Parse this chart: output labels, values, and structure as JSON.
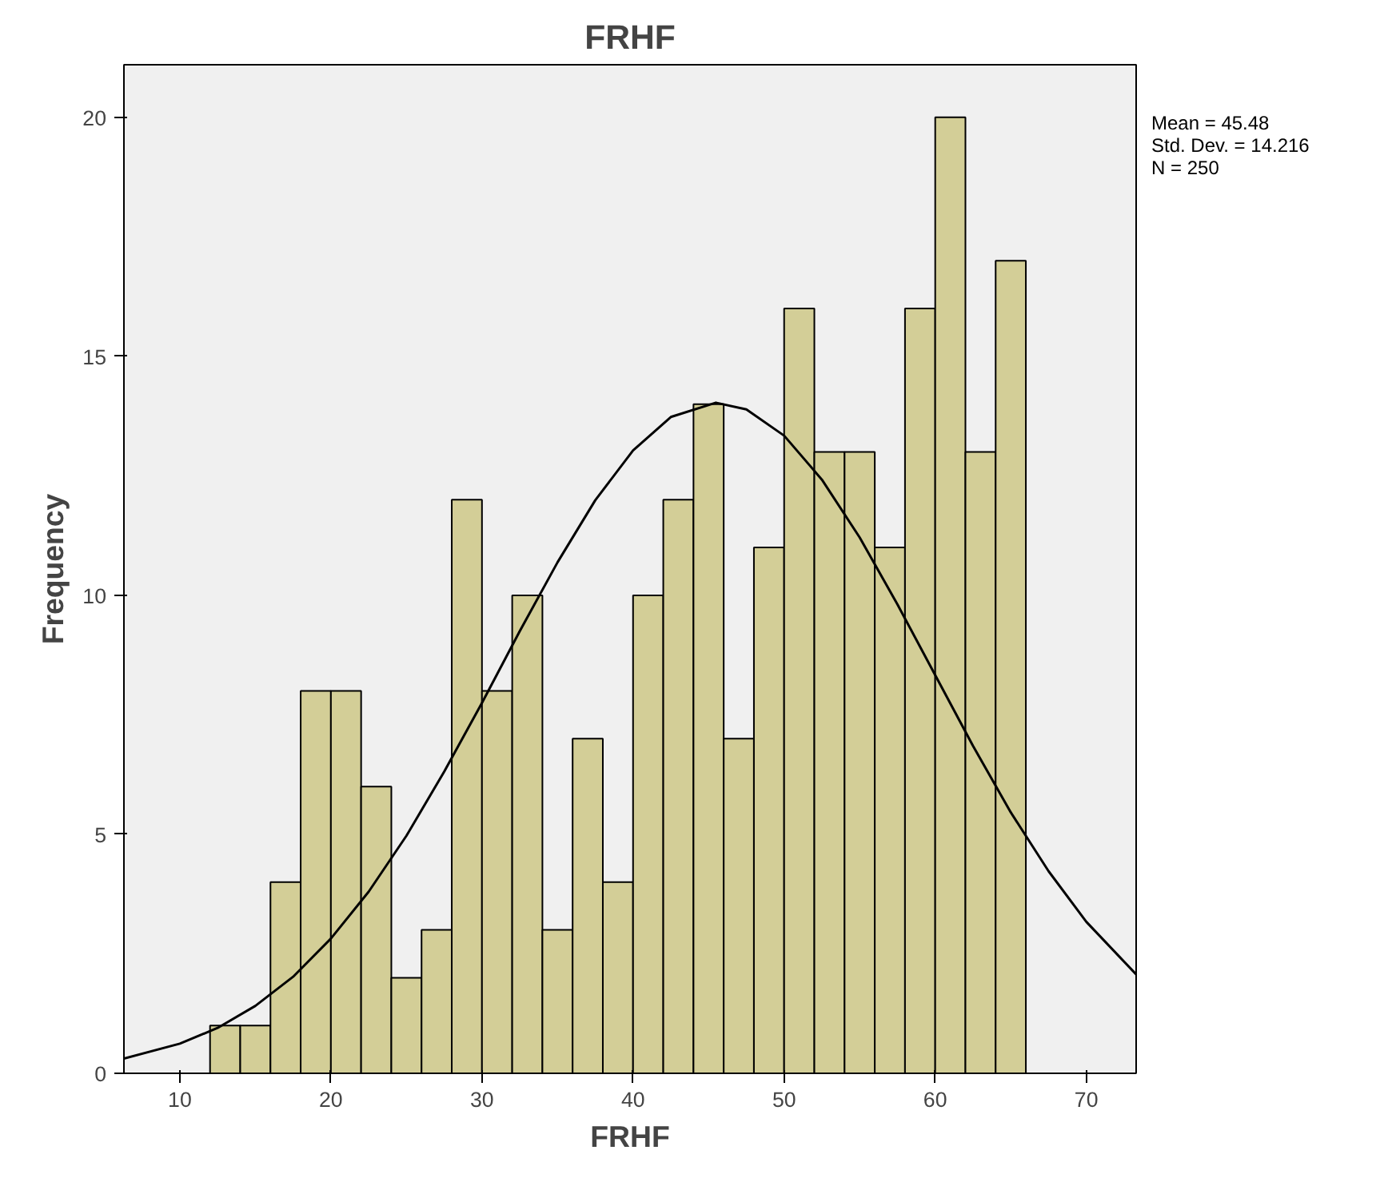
{
  "chart_data": {
    "type": "histogram",
    "title": "FRHF",
    "xlabel": "FRHF",
    "ylabel": "Frequency",
    "bins": [
      12,
      14,
      16,
      18,
      20,
      22,
      24,
      26,
      28,
      30,
      32,
      34,
      36,
      38,
      40,
      42,
      44,
      46,
      48,
      50,
      52,
      54,
      56,
      58,
      60,
      62,
      64,
      66
    ],
    "values": [
      1,
      1,
      4,
      8,
      8,
      6,
      2,
      3,
      12,
      8,
      10,
      3,
      7,
      4,
      10,
      12,
      14,
      7,
      11,
      16,
      13,
      13,
      11,
      16,
      20,
      13,
      17
    ],
    "color": "#d3ce97",
    "series": [
      {
        "type": "line",
        "color": "#000000",
        "x": [
          6.3,
          10,
          12.5,
          15,
          17.5,
          20,
          22.5,
          25,
          27.5,
          30,
          32.5,
          35,
          37.5,
          40,
          42.5,
          45.48,
          47.5,
          50,
          52.5,
          55,
          57.5,
          60,
          62.5,
          65,
          67.5,
          70,
          73.3
        ],
        "values": [
          0.31,
          0.62,
          0.95,
          1.41,
          2.02,
          2.82,
          3.8,
          4.97,
          6.31,
          7.75,
          9.25,
          10.69,
          11.99,
          13.03,
          13.73,
          14.03,
          13.89,
          13.34,
          12.42,
          11.21,
          9.81,
          8.33,
          6.85,
          5.46,
          4.23,
          3.17,
          2.07
        ]
      }
    ],
    "xlim": [
      6.3,
      73.3
    ],
    "ylim": [
      0,
      21.1
    ],
    "xticks": [
      10,
      20,
      30,
      40,
      50,
      60,
      70
    ],
    "yticks": [
      0,
      5,
      10,
      15,
      20
    ],
    "grid": false,
    "annotations": [
      "Mean = 45.48",
      "Std. Dev. = 14.216",
      "N = 250"
    ]
  }
}
